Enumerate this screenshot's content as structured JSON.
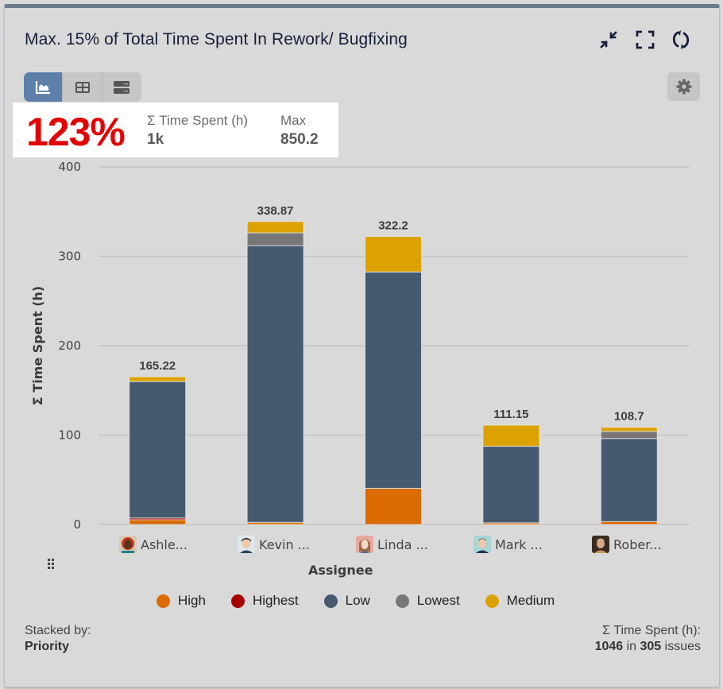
{
  "header": {
    "title": "Max. 15% of Total Time Spent In Rework/ Bugfixing",
    "icons": [
      "collapse-icon",
      "fullscreen-icon",
      "refresh-icon"
    ]
  },
  "view_toggle": {
    "options": [
      {
        "name": "chart-view",
        "icon": "area-chart-icon",
        "active": true
      },
      {
        "name": "table-view",
        "icon": "table-icon",
        "active": false
      },
      {
        "name": "list-view",
        "icon": "list-icon",
        "active": false
      }
    ],
    "accent": "#5d80a9"
  },
  "settings": {
    "icon": "gear-icon"
  },
  "kpi": {
    "percent": "123%",
    "percent_color": "#e30000",
    "sum_label": "Σ Time Spent (h)",
    "sum_value": "1k",
    "max_label": "Max",
    "max_value": "850.2"
  },
  "chart_data": {
    "type": "bar",
    "stacked": true,
    "title": "",
    "xlabel": "Assignee",
    "ylabel": "Σ Time Spent (h)",
    "ylim": [
      0,
      400
    ],
    "yticks": [
      "0",
      "100",
      "200",
      "300",
      "400"
    ],
    "grid": true,
    "legend_position": "bottom",
    "categories": [
      "Ashle...",
      "Kevin ...",
      "Linda ...",
      "Mark ...",
      "Rober..."
    ],
    "totals": [
      "165.22",
      "338.87",
      "322.2",
      "111.15",
      "108.7"
    ],
    "series": [
      {
        "name": "High",
        "color": "#d96b00",
        "values": [
          5.4,
          2.4,
          40.5,
          1.9,
          3.2
        ]
      },
      {
        "name": "Highest",
        "color": "#a40000",
        "values": [
          1.9,
          0,
          0,
          0,
          0
        ]
      },
      {
        "name": "Low",
        "color": "#465a6f",
        "values": [
          152.6,
          309.5,
          242.0,
          85.6,
          93.0
        ]
      },
      {
        "name": "Lowest",
        "color": "#777777",
        "values": [
          0,
          14.3,
          0,
          0,
          7.9
        ]
      },
      {
        "name": "Medium",
        "color": "#dca200",
        "values": [
          5.32,
          12.67,
          39.7,
          23.65,
          4.6
        ]
      }
    ]
  },
  "footer": {
    "stacked_by_label": "Stacked by:",
    "stacked_by_value": "Priority",
    "sum_label": "Σ Time Spent (h):",
    "sum_value": "1046",
    "in_text": " in ",
    "issues_count": "305",
    "issues_text": " issues"
  }
}
